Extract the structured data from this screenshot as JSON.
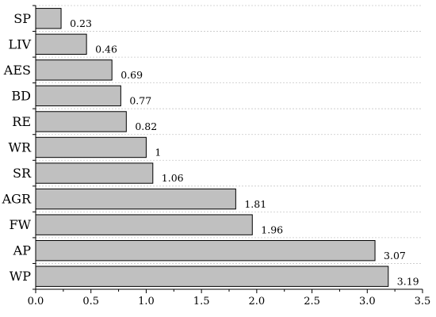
{
  "chart_data": {
    "type": "bar",
    "orientation": "horizontal",
    "categories": [
      "SP",
      "LIV",
      "AES",
      "BD",
      "RE",
      "WR",
      "SR",
      "AGR",
      "FW",
      "AP",
      "WP"
    ],
    "values": [
      0.23,
      0.46,
      0.69,
      0.77,
      0.82,
      1,
      1.06,
      1.81,
      1.96,
      3.07,
      3.19
    ],
    "value_labels": [
      "0.23",
      "0.46",
      "0.69",
      "0.77",
      "0.82",
      "1",
      "1.06",
      "1.81",
      "1.96",
      "3.07",
      "3.19"
    ],
    "title": "",
    "xlabel": "",
    "ylabel": "",
    "xlim": [
      0,
      3.5
    ],
    "x_ticks": [
      "0.0",
      "0.5",
      "1.0",
      "1.5",
      "2.0",
      "2.5",
      "3.0",
      "3.5"
    ],
    "grid": "horizontal dashed",
    "legend": "none",
    "bar_color": "#c0c0c0"
  }
}
